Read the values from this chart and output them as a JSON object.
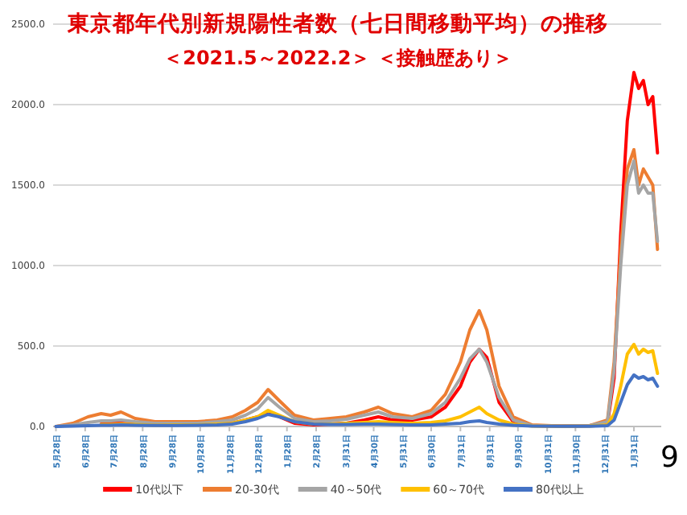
{
  "chart_data": {
    "type": "line",
    "title": "東京都年代別新規陽性者数（七日間移動平均）の推移",
    "subtitle": "＜2021.5～2022.2＞ ＜接触歴あり＞",
    "x": [
      "2020-05-28",
      "2020-06-15",
      "2020-07-01",
      "2020-07-15",
      "2020-07-25",
      "2020-08-05",
      "2020-08-20",
      "2020-09-10",
      "2020-10-01",
      "2020-10-25",
      "2020-11-15",
      "2020-12-01",
      "2020-12-15",
      "2020-12-28",
      "2021-01-08",
      "2021-01-20",
      "2021-02-05",
      "2021-02-25",
      "2021-03-15",
      "2021-04-01",
      "2021-04-20",
      "2021-05-05",
      "2021-05-20",
      "2021-06-10",
      "2021-06-30",
      "2021-07-15",
      "2021-07-31",
      "2021-08-10",
      "2021-08-20",
      "2021-08-28",
      "2021-09-10",
      "2021-09-25",
      "2021-10-15",
      "2021-11-15",
      "2021-12-15",
      "2022-01-03",
      "2022-01-10",
      "2022-01-17",
      "2022-01-24",
      "2022-01-31",
      "2022-02-05",
      "2022-02-10",
      "2022-02-15",
      "2022-02-20",
      "2022-02-25"
    ],
    "series": [
      {
        "name": "10代以下",
        "color": "#ff0000",
        "values": [
          null,
          null,
          null,
          15,
          20,
          20,
          15,
          10,
          10,
          10,
          15,
          20,
          40,
          60,
          90,
          60,
          20,
          10,
          15,
          20,
          40,
          60,
          40,
          40,
          60,
          120,
          250,
          400,
          480,
          430,
          150,
          30,
          5,
          2,
          5,
          20,
          300,
          1200,
          1900,
          2200,
          2100,
          2150,
          2000,
          2050,
          1700
        ]
      },
      {
        "name": "20-30代",
        "color": "#ed7d31",
        "values": [
          0,
          20,
          60,
          80,
          70,
          90,
          50,
          30,
          30,
          30,
          40,
          60,
          100,
          150,
          230,
          160,
          70,
          40,
          50,
          60,
          90,
          120,
          80,
          60,
          100,
          200,
          400,
          600,
          720,
          600,
          250,
          60,
          10,
          3,
          5,
          40,
          400,
          1100,
          1600,
          1720,
          1500,
          1600,
          1550,
          1500,
          1100
        ]
      },
      {
        "name": "40～50代",
        "color": "#a5a5a5",
        "values": [
          0,
          10,
          25,
          35,
          35,
          40,
          30,
          20,
          20,
          20,
          30,
          40,
          70,
          110,
          180,
          120,
          50,
          30,
          35,
          45,
          70,
          90,
          60,
          50,
          80,
          150,
          300,
          420,
          480,
          400,
          180,
          40,
          5,
          2,
          5,
          30,
          350,
          1000,
          1500,
          1650,
          1450,
          1500,
          1450,
          1450,
          1150
        ]
      },
      {
        "name": "60～70代",
        "color": "#ffc000",
        "values": [
          null,
          null,
          null,
          12,
          12,
          15,
          12,
          8,
          10,
          10,
          15,
          20,
          40,
          60,
          100,
          70,
          30,
          15,
          15,
          20,
          25,
          30,
          25,
          20,
          25,
          35,
          60,
          90,
          120,
          80,
          40,
          15,
          3,
          1,
          2,
          10,
          80,
          250,
          450,
          510,
          450,
          480,
          460,
          470,
          330
        ]
      },
      {
        "name": "80代以上",
        "color": "#4472c4",
        "values": [
          0,
          2,
          5,
          8,
          8,
          10,
          8,
          6,
          6,
          8,
          10,
          15,
          30,
          50,
          75,
          60,
          30,
          15,
          12,
          12,
          15,
          15,
          12,
          10,
          10,
          15,
          20,
          30,
          35,
          25,
          15,
          8,
          2,
          1,
          1,
          5,
          40,
          150,
          260,
          320,
          300,
          310,
          290,
          300,
          250
        ]
      }
    ],
    "xlim": [
      "2020-05-25",
      "2022-03-01"
    ],
    "xticks": [
      {
        "value": "2020-05-28",
        "label": "5月28日"
      },
      {
        "value": "2020-06-28",
        "label": "6月28日"
      },
      {
        "value": "2020-07-28",
        "label": "7月28日"
      },
      {
        "value": "2020-08-28",
        "label": "8月28日"
      },
      {
        "value": "2020-09-28",
        "label": "9月28日"
      },
      {
        "value": "2020-10-28",
        "label": "10月28日"
      },
      {
        "value": "2020-11-28",
        "label": "11月28日"
      },
      {
        "value": "2020-12-28",
        "label": "12月28日"
      },
      {
        "value": "2021-01-28",
        "label": "1月28日"
      },
      {
        "value": "2021-02-28",
        "label": "2月28日"
      },
      {
        "value": "2021-03-31",
        "label": "3月31日"
      },
      {
        "value": "2021-04-30",
        "label": "4月30日"
      },
      {
        "value": "2021-05-31",
        "label": "5月31日"
      },
      {
        "value": "2021-06-30",
        "label": "6月30日"
      },
      {
        "value": "2021-07-31",
        "label": "7月31日"
      },
      {
        "value": "2021-08-31",
        "label": "8月31日"
      },
      {
        "value": "2021-09-30",
        "label": "9月30日"
      },
      {
        "value": "2021-10-31",
        "label": "10月31日"
      },
      {
        "value": "2021-11-30",
        "label": "11月30日"
      },
      {
        "value": "2021-12-31",
        "label": "12月31日"
      },
      {
        "value": "2022-01-31",
        "label": "1月31日"
      }
    ],
    "ylim": [
      0,
      2500
    ],
    "yticks": [
      {
        "value": 0,
        "label": "0.0"
      },
      {
        "value": 500,
        "label": "500.0"
      },
      {
        "value": 1000,
        "label": "1000.0"
      },
      {
        "value": 1500,
        "label": "1500.0"
      },
      {
        "value": 2000,
        "label": "2000.0"
      },
      {
        "value": 2500,
        "label": "2500.0"
      }
    ],
    "grid": "y",
    "legend": "bottom",
    "annotations": [
      "9"
    ]
  }
}
